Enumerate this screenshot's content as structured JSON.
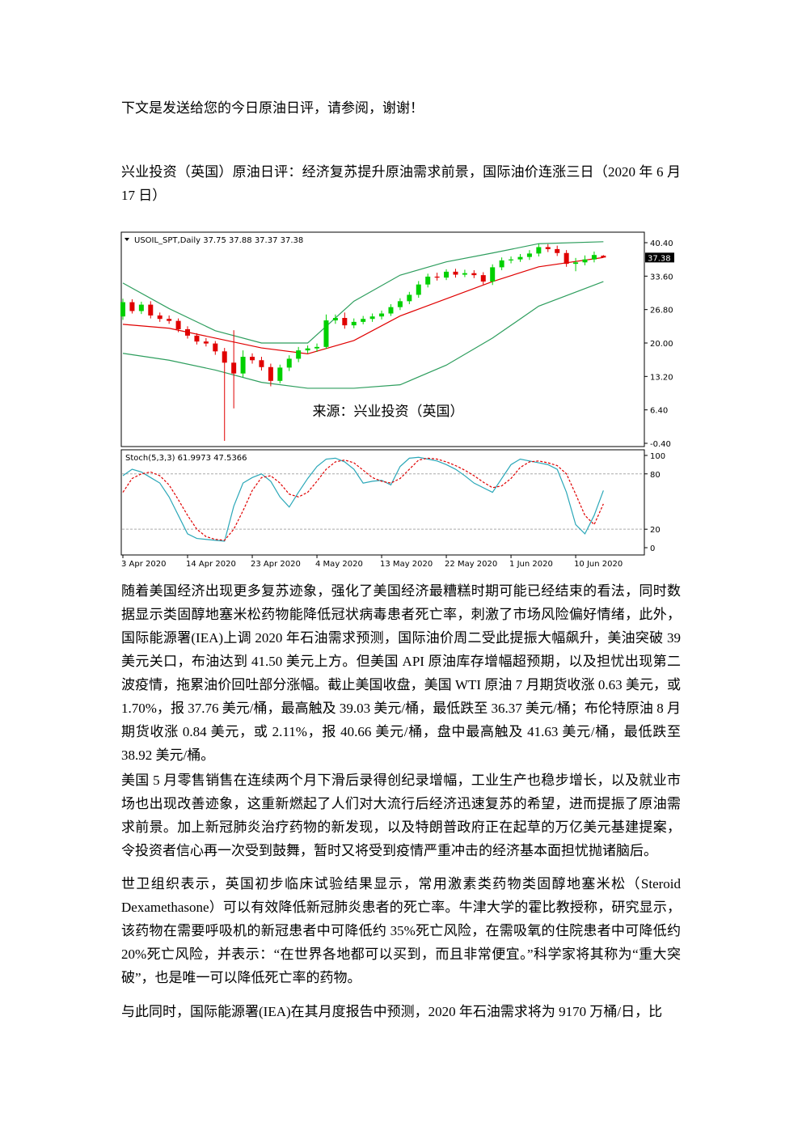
{
  "intro": "下文是发送给您的今日原油日评，请参阅，谢谢！",
  "title": "兴业投资（英国）原油日评：经济复苏提升原油需求前景，国际油价连涨三日（2020 年 6 月17 日）",
  "chart_data": {
    "type": "candlestick",
    "header": "USOIL_SPT,Daily 37.75 37.88 37.37 37.38",
    "categories": [
      "3 Apr 2020",
      null,
      null,
      null,
      null,
      null,
      null,
      "14 Apr 2020",
      null,
      null,
      null,
      null,
      null,
      null,
      "23 Apr 2020",
      null,
      null,
      null,
      null,
      null,
      null,
      "4 May 2020",
      null,
      null,
      null,
      null,
      null,
      null,
      "13 May 2020",
      null,
      null,
      null,
      null,
      null,
      null,
      "22 May 2020",
      null,
      null,
      null,
      null,
      null,
      null,
      "1 Jun 2020",
      null,
      null,
      null,
      null,
      null,
      null,
      "10 Jun 2020",
      null,
      null,
      null
    ],
    "open": [
      25.4,
      28.3,
      26.5,
      27.8,
      25.6,
      24.9,
      24.5,
      22.8,
      21.5,
      20.3,
      19.9,
      18.3,
      16.0,
      13.8,
      17.2,
      16.5,
      15.1,
      12.3,
      15.0,
      16.8,
      18.5,
      18.9,
      19.2,
      24.6,
      25.1,
      23.6,
      24.3,
      24.9,
      25.4,
      26.0,
      27.3,
      28.5,
      29.8,
      31.9,
      33.5,
      33.3,
      34.5,
      33.9,
      34.2,
      33.8,
      32.5,
      35.4,
      36.8,
      37.0,
      37.5,
      38.2,
      39.5,
      39.1,
      38.3,
      36.1,
      36.4,
      37.0,
      37.75
    ],
    "high": [
      29.0,
      28.9,
      28.4,
      28.5,
      26.2,
      25.6,
      25.0,
      23.4,
      22.0,
      21.0,
      20.4,
      19.0,
      22.6,
      18.5,
      17.9,
      17.2,
      15.8,
      15.6,
      17.5,
      19.2,
      19.5,
      19.9,
      25.8,
      25.8,
      26.2,
      25.0,
      25.5,
      26.0,
      26.6,
      27.9,
      29.1,
      30.4,
      32.6,
      34.1,
      34.3,
      35.0,
      35.1,
      34.9,
      34.8,
      34.4,
      36.0,
      37.4,
      37.6,
      38.1,
      38.9,
      40.2,
      40.1,
      39.8,
      38.9,
      37.3,
      37.8,
      38.6,
      37.88
    ],
    "low": [
      24.7,
      26.0,
      25.9,
      25.0,
      24.3,
      23.9,
      22.2,
      20.9,
      19.7,
      19.3,
      17.6,
      0.1,
      6.7,
      13.0,
      15.8,
      14.4,
      11.2,
      11.8,
      14.3,
      16.1,
      17.9,
      18.2,
      18.8,
      23.9,
      22.9,
      23.0,
      23.8,
      24.3,
      24.8,
      25.5,
      26.7,
      27.9,
      29.2,
      31.3,
      32.7,
      32.8,
      33.3,
      33.4,
      33.2,
      31.9,
      31.8,
      34.8,
      36.2,
      36.5,
      36.9,
      37.6,
      38.5,
      37.7,
      35.5,
      34.6,
      35.8,
      36.4,
      37.37
    ],
    "close": [
      28.3,
      26.5,
      27.8,
      25.6,
      24.9,
      24.5,
      22.8,
      21.5,
      20.3,
      19.9,
      18.3,
      16.0,
      13.8,
      17.2,
      16.5,
      15.1,
      12.3,
      15.0,
      16.8,
      18.5,
      18.9,
      19.2,
      24.6,
      25.1,
      23.6,
      24.3,
      24.9,
      25.4,
      26.0,
      27.3,
      28.5,
      29.8,
      31.9,
      33.5,
      33.3,
      34.5,
      33.9,
      34.2,
      33.8,
      32.5,
      35.4,
      36.8,
      37.0,
      37.5,
      38.2,
      39.5,
      39.1,
      38.3,
      36.1,
      36.4,
      37.0,
      37.9,
      37.38
    ],
    "up_color": "#00d000",
    "down_color": "#e00000",
    "ylim": [
      -1.06,
      42.54
    ],
    "yticks": [
      {
        "value": -0.4,
        "label": "-0.40"
      },
      {
        "value": 6.4,
        "label": "6.40"
      },
      {
        "value": 13.2,
        "label": "13.20"
      },
      {
        "value": 20,
        "label": "20.00"
      },
      {
        "value": 26.8,
        "label": "26.80"
      },
      {
        "value": 33.6,
        "label": "33.60"
      },
      {
        "value": 40.4,
        "label": "40.40"
      }
    ],
    "current_price": 37.38,
    "annotation": "来源：兴业投资（英国）",
    "bands": [
      {
        "color": "#2e9e5e",
        "x": [
          0,
          5,
          10,
          15,
          20,
          25,
          30,
          35,
          40,
          45,
          52
        ],
        "values": [
          32.2,
          27.0,
          22.5,
          20.0,
          20.0,
          28.5,
          33.8,
          36.5,
          38.3,
          40.2,
          40.6
        ]
      },
      {
        "color": "#e00000",
        "x": [
          0,
          5,
          10,
          15,
          20,
          25,
          30,
          35,
          40,
          45,
          52
        ],
        "values": [
          23.8,
          23.0,
          21.0,
          19.0,
          17.8,
          20.5,
          25.5,
          29.0,
          32.5,
          35.5,
          37.4
        ]
      },
      {
        "color": "#2e9e5e",
        "x": [
          0,
          5,
          10,
          15,
          20,
          25,
          30,
          35,
          40,
          45,
          52
        ],
        "values": [
          17.9,
          16.5,
          14.5,
          12.0,
          10.8,
          10.8,
          11.5,
          15.5,
          21.0,
          27.5,
          32.5
        ]
      }
    ],
    "stochastic": {
      "label": "Stoch(5,3,3) 61.9973 47.5366",
      "ylim": [
        -7.9,
        106.1
      ],
      "yticks": [
        0,
        20,
        80,
        100
      ],
      "level_lines": [
        20,
        80
      ],
      "series": [
        {
          "color": "#2aa7b8",
          "values": [
            78,
            85,
            82,
            76,
            70,
            55,
            35,
            15,
            10,
            9,
            8,
            7,
            45,
            70,
            76,
            80,
            72,
            55,
            44,
            60,
            75,
            88,
            96,
            97,
            93,
            85,
            70,
            72,
            73,
            68,
            88,
            97,
            98,
            96,
            94,
            90,
            85,
            78,
            70,
            65,
            60,
            75,
            90,
            96,
            94,
            92,
            90,
            85,
            60,
            25,
            15,
            35,
            62
          ]
        },
        {
          "color": "#e00000",
          "dashed": true,
          "values": [
            60,
            75,
            80,
            82,
            78,
            68,
            52,
            35,
            20,
            12,
            9,
            8,
            20,
            40,
            62,
            76,
            78,
            70,
            58,
            55,
            60,
            72,
            85,
            93,
            95,
            92,
            84,
            76,
            72,
            70,
            75,
            85,
            95,
            97,
            96,
            93,
            89,
            84,
            78,
            71,
            65,
            67,
            75,
            87,
            93,
            94,
            92,
            89,
            80,
            58,
            35,
            25,
            47.5
          ]
        }
      ]
    }
  },
  "paragraphs": [
    "随着美国经济出现更多复苏迹象，强化了美国经济最糟糕时期可能已经结束的看法，同时数据显示类固醇地塞米松药物能降低冠状病毒患者死亡率，刺激了市场风险偏好情绪，此外，国际能源署(IEA)上调 2020 年石油需求预测，国际油价周二受此提振大幅飙升，美油突破 39 美元关口，布油达到 41.50 美元上方。但美国 API 原油库存增幅超预期，以及担忧出现第二波疫情，拖累油价回吐部分涨幅。截止美国收盘，美国 WTI 原油 7 月期货收涨 0.63 美元，或 1.70%，报 37.76 美元/桶，最高触及 39.03 美元/桶，最低跌至 36.37 美元/桶；布伦特原油 8 月期货收涨 0.84 美元，或 2.11%，报 40.66 美元/桶，盘中最高触及 41.63 美元/桶，最低跌至 38.92 美元/桶。",
    "美国 5 月零售销售在连续两个月下滑后录得创纪录增幅，工业生产也稳步增长，以及就业市场也出现改善迹象，这重新燃起了人们对大流行后经济迅速复苏的希望，进而提振了原油需求前景。加上新冠肺炎治疗药物的新发现，以及特朗普政府正在起草的万亿美元基建提案，令投资者信心再一次受到鼓舞，暂时又将受到疫情严重冲击的经济基本面担忧抛诸脑后。",
    "世卫组织表示，英国初步临床试验结果显示，常用激素类药物类固醇地塞米松（Steroid Dexamethasone）可以有效降低新冠肺炎患者的死亡率。牛津大学的霍比教授称，研究显示，该药物在需要呼吸机的新冠患者中可降低约 35%死亡风险，在需吸氧的住院患者中可降低约 20%死亡风险，并表示：“在世界各地都可以买到，而且非常便宜。”科学家将其称为“重大突破”，也是唯一可以降低死亡率的药物。",
    "与此同时，国际能源署(IEA)在其月度报告中预测，2020 年石油需求将为 9170 万桶/日，比"
  ]
}
